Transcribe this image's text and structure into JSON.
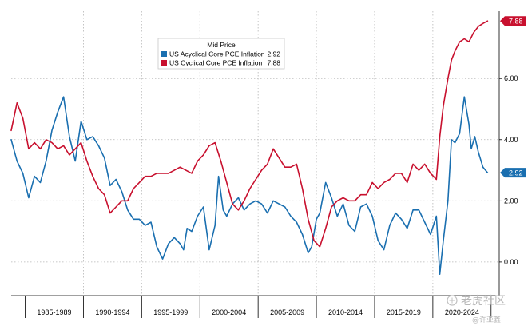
{
  "chart_data": {
    "type": "line",
    "legend": {
      "title": "Mid Price",
      "location": "top-left"
    },
    "x_range": [
      1983.5,
      2025.4
    ],
    "ylim": [
      -1.1,
      8.2
    ],
    "y_axis_side": "right",
    "y_ticks": [
      {
        "value": 0,
        "label": "0.00"
      },
      {
        "value": 2,
        "label": "2.00"
      },
      {
        "value": 4,
        "label": "4.00"
      },
      {
        "value": 6,
        "label": "6.00"
      }
    ],
    "x_period_labels": [
      "1985-1989",
      "1990-1994",
      "1995-1999",
      "2000-2004",
      "2005-2009",
      "2010-2014",
      "2015-2019",
      "2020-2024"
    ],
    "grid": true,
    "series": [
      {
        "name": "US Acyclical Core PCE Inflation",
        "last_value": "2.92",
        "value_label": "2.92",
        "color": "#1a6fb0",
        "x": [
          1983.5,
          1984.0,
          1984.5,
          1985.0,
          1985.5,
          1986.0,
          1986.5,
          1987.0,
          1987.5,
          1988.0,
          1988.5,
          1989.0,
          1989.5,
          1990.0,
          1990.5,
          1991.0,
          1991.5,
          1992.0,
          1992.5,
          1993.0,
          1993.5,
          1994.0,
          1994.5,
          1995.0,
          1995.5,
          1996.0,
          1996.5,
          1997.0,
          1997.5,
          1998.0,
          1998.3,
          1998.6,
          1999.0,
          1999.5,
          2000.0,
          2000.5,
          2001.0,
          2001.3,
          2001.7,
          2002.0,
          2002.5,
          2003.0,
          2003.5,
          2004.0,
          2004.5,
          2005.0,
          2005.5,
          2006.0,
          2006.5,
          2007.0,
          2007.5,
          2008.0,
          2008.5,
          2009.0,
          2009.3,
          2009.7,
          2010.0,
          2010.5,
          2011.0,
          2011.5,
          2012.0,
          2012.5,
          2013.0,
          2013.5,
          2014.0,
          2014.5,
          2015.0,
          2015.5,
          2016.0,
          2016.5,
          2017.0,
          2017.5,
          2018.0,
          2018.5,
          2019.0,
          2019.5,
          2020.0,
          2020.3,
          2020.6,
          2021.0,
          2021.3,
          2021.6,
          2022.0,
          2022.4,
          2022.8,
          2023.0,
          2023.3,
          2023.6,
          2024.0,
          2024.4
        ],
        "values": [
          4.0,
          3.3,
          2.9,
          2.1,
          2.8,
          2.6,
          3.3,
          4.3,
          4.9,
          5.4,
          4.1,
          3.3,
          4.6,
          4.0,
          4.1,
          3.8,
          3.4,
          2.5,
          2.7,
          2.3,
          1.7,
          1.4,
          1.4,
          1.2,
          1.3,
          0.5,
          0.1,
          0.6,
          0.8,
          0.6,
          0.4,
          1.1,
          1.0,
          1.5,
          1.8,
          0.4,
          1.2,
          2.8,
          1.7,
          1.5,
          1.9,
          2.1,
          1.7,
          1.9,
          2.0,
          1.9,
          1.6,
          2.0,
          1.9,
          1.8,
          1.5,
          1.3,
          0.9,
          0.3,
          0.5,
          1.4,
          1.6,
          2.6,
          2.1,
          1.5,
          1.9,
          1.2,
          1.0,
          1.8,
          1.9,
          1.5,
          0.7,
          0.4,
          1.2,
          1.6,
          1.4,
          1.1,
          1.7,
          1.7,
          1.3,
          0.9,
          1.5,
          -0.4,
          0.7,
          2.0,
          4.0,
          3.9,
          4.2,
          5.4,
          4.5,
          3.7,
          4.1,
          3.6,
          3.1,
          2.92
        ]
      },
      {
        "name": "US Cyclical Core PCE Inflation",
        "last_value": "7.88",
        "value_label": "7.88",
        "color": "#c8102e",
        "x": [
          1983.5,
          1984.0,
          1984.5,
          1985.0,
          1985.5,
          1986.0,
          1986.5,
          1987.0,
          1987.5,
          1988.0,
          1988.5,
          1989.0,
          1989.5,
          1990.0,
          1990.5,
          1991.0,
          1991.5,
          1992.0,
          1992.5,
          1993.0,
          1993.5,
          1994.0,
          1994.5,
          1995.0,
          1995.5,
          1996.0,
          1996.5,
          1997.0,
          1997.5,
          1998.0,
          1998.5,
          1999.0,
          1999.5,
          2000.0,
          2000.5,
          2001.0,
          2001.5,
          2002.0,
          2002.5,
          2003.0,
          2003.5,
          2004.0,
          2004.5,
          2005.0,
          2005.5,
          2006.0,
          2006.5,
          2007.0,
          2007.5,
          2008.0,
          2008.5,
          2009.0,
          2009.5,
          2010.0,
          2010.5,
          2011.0,
          2011.5,
          2012.0,
          2012.5,
          2013.0,
          2013.5,
          2014.0,
          2014.5,
          2015.0,
          2015.5,
          2016.0,
          2016.5,
          2017.0,
          2017.5,
          2018.0,
          2018.5,
          2019.0,
          2019.5,
          2020.0,
          2020.3,
          2020.6,
          2021.0,
          2021.3,
          2021.6,
          2022.0,
          2022.4,
          2022.8,
          2023.2,
          2023.6,
          2024.0,
          2024.4
        ],
        "values": [
          4.3,
          5.2,
          4.7,
          3.7,
          3.9,
          3.7,
          4.0,
          3.9,
          3.7,
          3.8,
          3.5,
          3.7,
          3.9,
          3.3,
          2.8,
          2.4,
          2.2,
          1.6,
          1.8,
          2.0,
          2.0,
          2.4,
          2.6,
          2.8,
          2.8,
          2.9,
          2.9,
          2.9,
          3.0,
          3.1,
          3.0,
          2.9,
          3.3,
          3.5,
          3.8,
          3.9,
          3.3,
          2.6,
          1.9,
          1.7,
          2.0,
          2.4,
          2.7,
          3.0,
          3.2,
          3.7,
          3.4,
          3.1,
          3.1,
          3.2,
          2.4,
          1.4,
          0.7,
          0.5,
          1.1,
          1.8,
          2.0,
          2.1,
          2.0,
          2.0,
          2.2,
          2.2,
          2.6,
          2.4,
          2.6,
          2.7,
          2.9,
          2.9,
          2.6,
          3.2,
          3.0,
          3.2,
          2.9,
          2.7,
          4.1,
          5.1,
          6.0,
          6.6,
          6.9,
          7.2,
          7.3,
          7.2,
          7.5,
          7.7,
          7.8,
          7.88
        ]
      }
    ]
  },
  "watermark": {
    "brand": "老虎社区",
    "author": "@许亚鑫"
  }
}
